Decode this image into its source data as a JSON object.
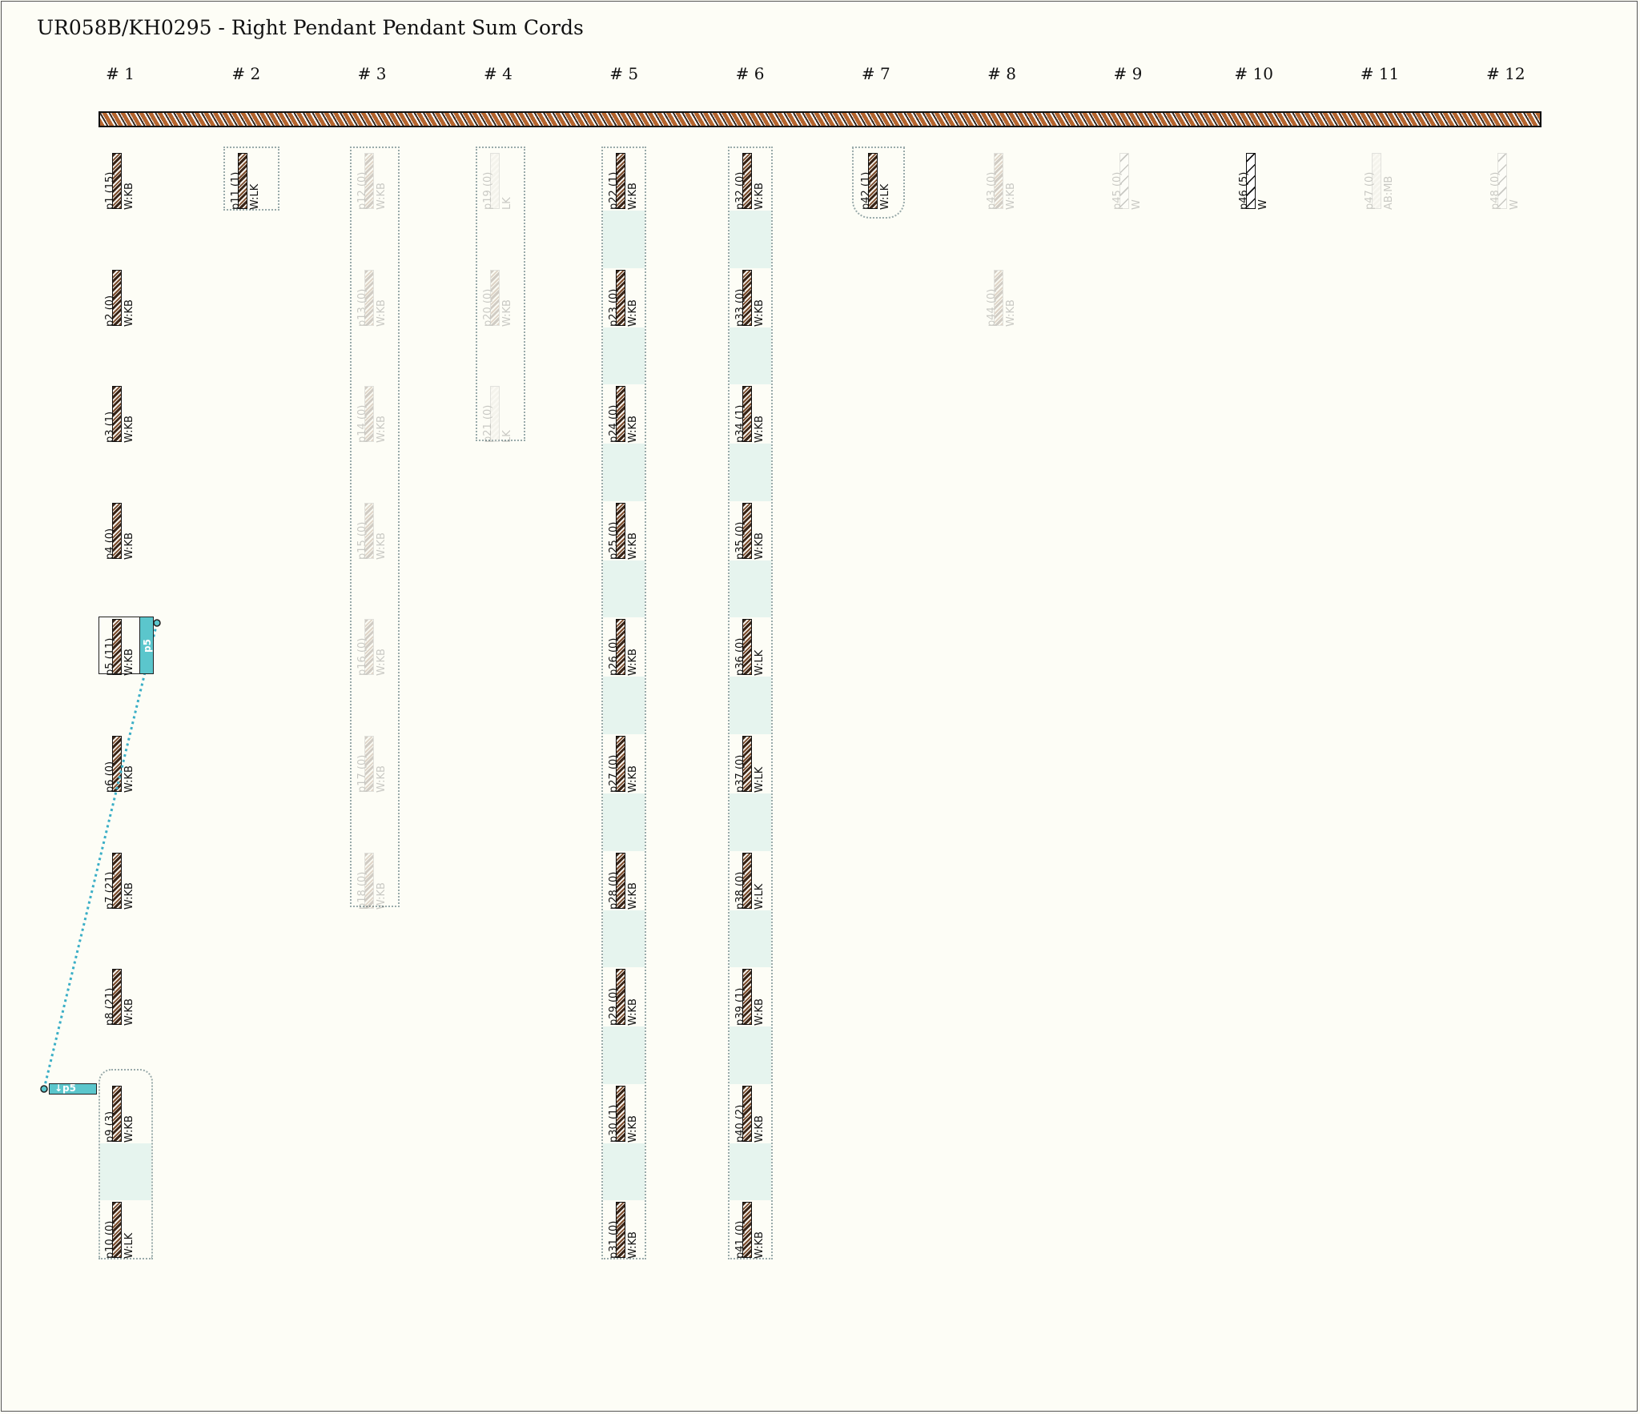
{
  "title": "UR058B/KH0295 - Right Pendant Pendant Sum Cords",
  "groups": [
    "# 1",
    "# 2",
    "# 3",
    "# 4",
    "# 5",
    "# 6",
    "# 7",
    "# 8",
    "# 9",
    "# 10",
    "# 11",
    "# 12"
  ],
  "pendants": [
    {
      "id": "p1 (15)",
      "color": "W:KB",
      "group": 0,
      "row": 0,
      "style": "normal"
    },
    {
      "id": "p2 (0)",
      "color": "W:KB",
      "group": 0,
      "row": 1,
      "style": "normal"
    },
    {
      "id": "p3 (1)",
      "color": "W:KB",
      "group": 0,
      "row": 2,
      "style": "normal"
    },
    {
      "id": "p4 (0)",
      "color": "W:KB",
      "group": 0,
      "row": 3,
      "style": "normal"
    },
    {
      "id": "p5 (11)",
      "color": "W:KB",
      "group": 0,
      "row": 4,
      "style": "normal"
    },
    {
      "id": "p6 (0)",
      "color": "W:KB",
      "group": 0,
      "row": 5,
      "style": "normal"
    },
    {
      "id": "p7 (21)",
      "color": "W:KB",
      "group": 0,
      "row": 6,
      "style": "normal"
    },
    {
      "id": "p8 (21)",
      "color": "W:KB",
      "group": 0,
      "row": 7,
      "style": "normal"
    },
    {
      "id": "p9 (3)",
      "color": "W:KB",
      "group": 0,
      "row": 8,
      "style": "normal"
    },
    {
      "id": "p10 (0)",
      "color": "W:LK",
      "group": 0,
      "row": 9,
      "style": "normal"
    },
    {
      "id": "p11 (1)",
      "color": "W:LK",
      "group": 1,
      "row": 0,
      "style": "normal"
    },
    {
      "id": "p12 (0)",
      "color": "W:KB",
      "group": 2,
      "row": 0,
      "style": "faded"
    },
    {
      "id": "p13 (0)",
      "color": "W:KB",
      "group": 2,
      "row": 1,
      "style": "faded"
    },
    {
      "id": "p14 (0)",
      "color": "W:KB",
      "group": 2,
      "row": 2,
      "style": "faded"
    },
    {
      "id": "p15 (0)",
      "color": "W:KB",
      "group": 2,
      "row": 3,
      "style": "faded"
    },
    {
      "id": "p16 (0)",
      "color": "W:KB",
      "group": 2,
      "row": 4,
      "style": "faded"
    },
    {
      "id": "p17 (0)",
      "color": "W:KB",
      "group": 2,
      "row": 5,
      "style": "faded"
    },
    {
      "id": "p18 (0)",
      "color": "W:KB",
      "group": 2,
      "row": 6,
      "style": "faded"
    },
    {
      "id": "p19 (0)",
      "color": "LK",
      "group": 3,
      "row": 0,
      "style": "faded-pale"
    },
    {
      "id": "p20 (0)",
      "color": "W:KB",
      "group": 3,
      "row": 1,
      "style": "faded"
    },
    {
      "id": "p21 (0)",
      "color": "LK",
      "group": 3,
      "row": 2,
      "style": "faded-pale"
    },
    {
      "id": "p22 (1)",
      "color": "W:KB",
      "group": 4,
      "row": 0,
      "style": "normal"
    },
    {
      "id": "p23 (0)",
      "color": "W:KB",
      "group": 4,
      "row": 1,
      "style": "normal"
    },
    {
      "id": "p24 (0)",
      "color": "W:KB",
      "group": 4,
      "row": 2,
      "style": "normal"
    },
    {
      "id": "p25 (0)",
      "color": "W:KB",
      "group": 4,
      "row": 3,
      "style": "normal"
    },
    {
      "id": "p26 (0)",
      "color": "W:KB",
      "group": 4,
      "row": 4,
      "style": "normal"
    },
    {
      "id": "p27 (0)",
      "color": "W:KB",
      "group": 4,
      "row": 5,
      "style": "normal"
    },
    {
      "id": "p28 (0)",
      "color": "W:KB",
      "group": 4,
      "row": 6,
      "style": "normal"
    },
    {
      "id": "p29 (0)",
      "color": "W:KB",
      "group": 4,
      "row": 7,
      "style": "normal"
    },
    {
      "id": "p30 (1)",
      "color": "W:KB",
      "group": 4,
      "row": 8,
      "style": "normal"
    },
    {
      "id": "p31 (0)",
      "color": "W:KB",
      "group": 4,
      "row": 9,
      "style": "normal"
    },
    {
      "id": "p32 (0)",
      "color": "W:KB",
      "group": 5,
      "row": 0,
      "style": "normal"
    },
    {
      "id": "p33 (0)",
      "color": "W:KB",
      "group": 5,
      "row": 1,
      "style": "normal"
    },
    {
      "id": "p34 (1)",
      "color": "W:KB",
      "group": 5,
      "row": 2,
      "style": "normal"
    },
    {
      "id": "p35 (0)",
      "color": "W:KB",
      "group": 5,
      "row": 3,
      "style": "normal"
    },
    {
      "id": "p36 (0)",
      "color": "W:LK",
      "group": 5,
      "row": 4,
      "style": "normal"
    },
    {
      "id": "p37 (0)",
      "color": "W:LK",
      "group": 5,
      "row": 5,
      "style": "normal"
    },
    {
      "id": "p38 (0)",
      "color": "W:LK",
      "group": 5,
      "row": 6,
      "style": "normal"
    },
    {
      "id": "p39 (1)",
      "color": "W:KB",
      "group": 5,
      "row": 7,
      "style": "normal"
    },
    {
      "id": "p40 (2)",
      "color": "W:KB",
      "group": 5,
      "row": 8,
      "style": "normal"
    },
    {
      "id": "p41 (0)",
      "color": "W:KB",
      "group": 5,
      "row": 9,
      "style": "normal"
    },
    {
      "id": "p42 (1)",
      "color": "W:LK",
      "group": 6,
      "row": 0,
      "style": "normal"
    },
    {
      "id": "p43 (0)",
      "color": "W:KB",
      "group": 7,
      "row": 0,
      "style": "faded"
    },
    {
      "id": "p44 (0)",
      "color": "W:KB",
      "group": 7,
      "row": 1,
      "style": "faded"
    },
    {
      "id": "p45 (0)",
      "color": "W",
      "group": 8,
      "row": 0,
      "style": "faded-white"
    },
    {
      "id": "p46 (5)",
      "color": "W",
      "group": 9,
      "row": 0,
      "style": "white"
    },
    {
      "id": "p47 (0)",
      "color": "AB:MB",
      "group": 10,
      "row": 0,
      "style": "faded-pale"
    },
    {
      "id": "p48 (0)",
      "color": "W",
      "group": 11,
      "row": 0,
      "style": "faded-white"
    }
  ],
  "sum_tags": {
    "p5_marker": "p5",
    "p9_marker": "↓p5"
  },
  "colors": {
    "background": "#fdfdf6",
    "sum_link": "#3aaec6",
    "group_shade": "#e6f4ee",
    "main_cord": "#b5652f"
  }
}
